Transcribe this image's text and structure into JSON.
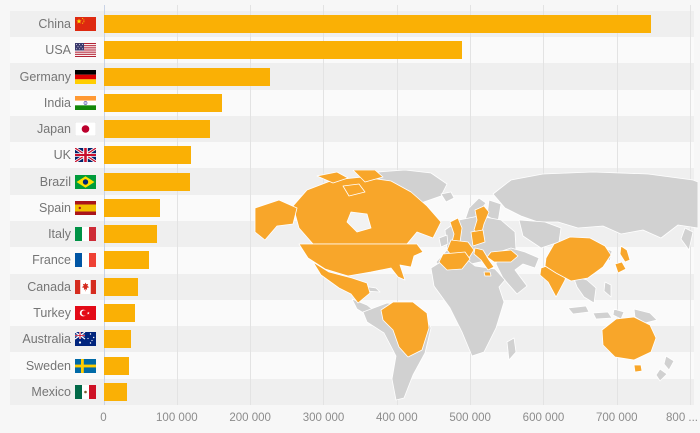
{
  "chart_data": {
    "type": "bar",
    "orientation": "horizontal",
    "title": "",
    "xlabel": "",
    "ylabel": "",
    "categories": [
      "China",
      "USA",
      "Germany",
      "India",
      "Japan",
      "UK",
      "Brazil",
      "Spain",
      "Italy",
      "France",
      "Canada",
      "Turkey",
      "Australia",
      "Sweden",
      "Mexico"
    ],
    "values": [
      746000,
      488000,
      226000,
      161000,
      145000,
      118000,
      117000,
      76000,
      72000,
      61000,
      46000,
      42000,
      37000,
      34000,
      31000
    ],
    "flag_icons": [
      "flag-china-icon",
      "flag-usa-icon",
      "flag-germany-icon",
      "flag-india-icon",
      "flag-japan-icon",
      "flag-uk-icon",
      "flag-brazil-icon",
      "flag-spain-icon",
      "flag-italy-icon",
      "flag-france-icon",
      "flag-canada-icon",
      "flag-turkey-icon",
      "flag-australia-icon",
      "flag-sweden-icon",
      "flag-mexico-icon"
    ],
    "x_tick_labels": [
      "0",
      "100 000",
      "200 000",
      "300 000",
      "400 000",
      "500 000",
      "600 000",
      "700 000",
      "800 ..."
    ],
    "x_tick_values": [
      0,
      100000,
      200000,
      300000,
      400000,
      500000,
      600000,
      700000,
      800000
    ],
    "xlim": [
      0,
      810000
    ],
    "grid": "vertical",
    "legend_position": "none",
    "row_stripes": true
  },
  "map": {
    "highlighted_countries": [
      "Canada",
      "USA",
      "Mexico",
      "Brazil",
      "UK",
      "France",
      "Spain",
      "Germany",
      "Italy",
      "Sweden",
      "Turkey",
      "India",
      "China",
      "Japan",
      "Australia"
    ],
    "base_regions": [
      "Greenland",
      "Iceland",
      "Ireland",
      "Norway",
      "Finland",
      "Russia",
      "Central Asia",
      "Middle East",
      "Africa",
      "Madagascar",
      "Europe (other)",
      "Korea",
      "Southeast Asia",
      "Philippines",
      "Indonesia",
      "New Guinea",
      "New Zealand",
      "Central America",
      "Cuba",
      "South America (other)"
    ]
  },
  "colors": {
    "bar": "#fab005",
    "map_base": "#d1d1d1",
    "map_highlight": "#f8a62a",
    "map_border": "#ffffff",
    "stripe": "#efefef",
    "stripe_alt": "#fafafa",
    "background": "#f7f7f7",
    "grid": "#e3e3e3",
    "baseline": "#c9d3e6",
    "label_text": "#757575",
    "axis_text": "#8c8c8c"
  }
}
